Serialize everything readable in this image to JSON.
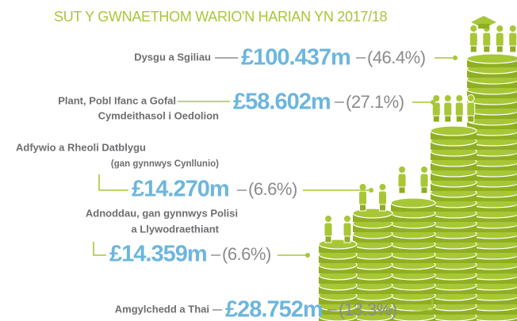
{
  "header": {
    "title": "SUT Y GWNAETHOM WARIO'N HARIAN YN 2017/18"
  },
  "items": [
    {
      "label": [
        "Dysgu a Sgiliau"
      ],
      "amount": "£100.437m",
      "percent": "(46.4%)"
    },
    {
      "label": [
        "Plant, Pobl Ifanc a Gofal",
        "Cymdeithasol i Oedolion"
      ],
      "amount": "£58.602m",
      "percent": "(27.1%)"
    },
    {
      "label": [
        "Adfywio a Rheoli Datblygu",
        "(gan gynnwys Cynllunio)"
      ],
      "amount": "£14.270m",
      "percent": "(6.6%)"
    },
    {
      "label": [
        "Adnoddau, gan gynnwys Polisi",
        "a Llywodraethiant"
      ],
      "amount": "£14.359m",
      "percent": "(6.6%)"
    },
    {
      "label": [
        "Amgylchedd a Thai"
      ],
      "amount": "£28.752m",
      "percent": "(13.3%)"
    }
  ]
}
